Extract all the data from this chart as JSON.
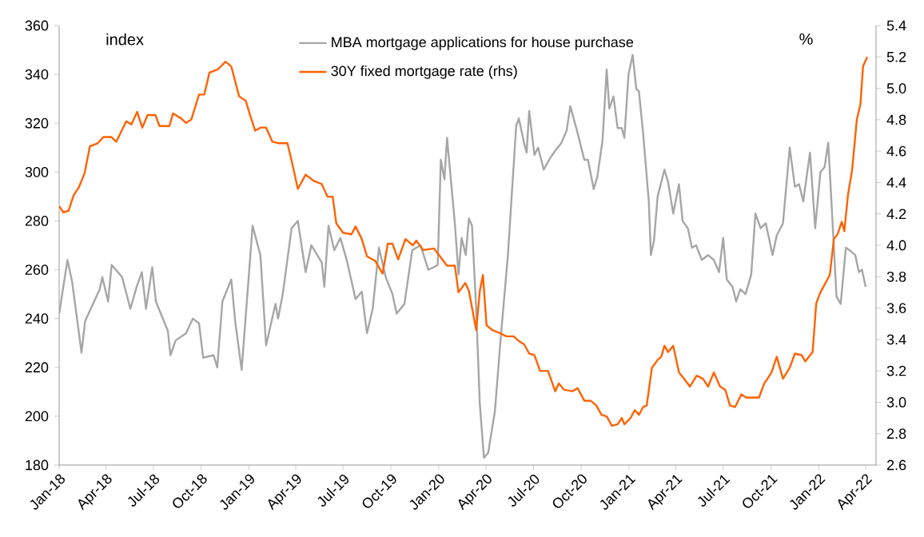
{
  "chart_data": {
    "type": "line",
    "ylabel": "index",
    "y2label": "%",
    "legend": "top",
    "xlim": [
      "2018-01-01",
      "2022-04-21"
    ],
    "xticks": [
      {
        "value": "2018-01-01",
        "label": "Jan-18"
      },
      {
        "value": "2018-04-01",
        "label": "Apr-18"
      },
      {
        "value": "2018-07-01",
        "label": "Jul-18"
      },
      {
        "value": "2018-10-01",
        "label": "Oct-18"
      },
      {
        "value": "2019-01-01",
        "label": "Jan-19"
      },
      {
        "value": "2019-04-01",
        "label": "Apr-19"
      },
      {
        "value": "2019-07-01",
        "label": "Jul-19"
      },
      {
        "value": "2019-10-01",
        "label": "Oct-19"
      },
      {
        "value": "2020-01-01",
        "label": "Jan-20"
      },
      {
        "value": "2020-04-01",
        "label": "Apr-20"
      },
      {
        "value": "2020-07-01",
        "label": "Jul-20"
      },
      {
        "value": "2020-10-01",
        "label": "Oct-20"
      },
      {
        "value": "2021-01-01",
        "label": "Jan-21"
      },
      {
        "value": "2021-04-01",
        "label": "Apr-21"
      },
      {
        "value": "2021-07-01",
        "label": "Jul-21"
      },
      {
        "value": "2021-10-01",
        "label": "Oct-21"
      },
      {
        "value": "2022-01-01",
        "label": "Jan-22"
      },
      {
        "value": "2022-04-01",
        "label": "Apr-22"
      }
    ],
    "ylim": [
      180,
      360
    ],
    "yticks": [
      180,
      200,
      220,
      240,
      260,
      280,
      300,
      320,
      340,
      360
    ],
    "y2lim": [
      2.6,
      5.4
    ],
    "y2ticks": [
      {
        "value": 2.6,
        "label": "2.6"
      },
      {
        "value": 2.8,
        "label": "2.8"
      },
      {
        "value": 3.0,
        "label": "3.0"
      },
      {
        "value": 3.2,
        "label": "3.2"
      },
      {
        "value": 3.4,
        "label": "3.4"
      },
      {
        "value": 3.6,
        "label": "3.6"
      },
      {
        "value": 3.8,
        "label": "3.8"
      },
      {
        "value": 4.0,
        "label": "4.0"
      },
      {
        "value": 4.2,
        "label": "4.2"
      },
      {
        "value": 4.4,
        "label": "4.4"
      },
      {
        "value": 4.6,
        "label": "4.6"
      },
      {
        "value": 4.8,
        "label": "4.8"
      },
      {
        "value": 5.0,
        "label": "5.0"
      },
      {
        "value": 5.2,
        "label": "5.2"
      },
      {
        "value": 5.4,
        "label": "5.4"
      }
    ],
    "series": [
      {
        "name": "MBA mortgage applications for house purchase",
        "color": "#a6a6a6",
        "x": [
          "2018-01-01",
          "2018-01-17",
          "2018-01-26",
          "2018-02-13",
          "2018-02-20",
          "2018-03-05",
          "2018-03-20",
          "2018-03-25",
          "2018-04-05",
          "2018-04-12",
          "2018-05-02",
          "2018-05-18",
          "2018-05-30",
          "2018-06-09",
          "2018-06-17",
          "2018-06-29",
          "2018-07-06",
          "2018-07-29",
          "2018-08-03",
          "2018-08-13",
          "2018-09-02",
          "2018-09-15",
          "2018-09-27",
          "2018-10-05",
          "2018-10-25",
          "2018-11-01",
          "2018-11-11",
          "2018-11-28",
          "2018-12-06",
          "2018-12-18",
          "2019-01-08",
          "2019-01-23",
          "2019-02-03",
          "2019-02-21",
          "2019-02-26",
          "2019-03-07",
          "2019-03-24",
          "2019-04-05",
          "2019-04-20",
          "2019-05-01",
          "2019-05-21",
          "2019-05-26",
          "2019-06-03",
          "2019-06-14",
          "2019-06-26",
          "2019-07-08",
          "2019-07-25",
          "2019-08-06",
          "2019-08-16",
          "2019-08-27",
          "2019-09-08",
          "2019-09-21",
          "2019-10-04",
          "2019-10-12",
          "2019-10-27",
          "2019-11-11",
          "2019-11-27",
          "2019-12-12",
          "2019-12-22",
          "2019-12-30",
          "2020-01-05",
          "2020-01-12",
          "2020-01-17",
          "2020-02-01",
          "2020-02-08",
          "2020-02-14",
          "2020-02-22",
          "2020-02-28",
          "2020-03-05",
          "2020-03-13",
          "2020-03-20",
          "2020-03-28",
          "2020-04-05",
          "2020-04-18",
          "2020-04-28",
          "2020-05-13",
          "2020-05-29",
          "2020-06-03",
          "2020-06-13",
          "2020-06-18",
          "2020-06-23",
          "2020-07-03",
          "2020-07-10",
          "2020-07-21",
          "2020-08-03",
          "2020-08-13",
          "2020-08-24",
          "2020-09-03",
          "2020-09-10",
          "2020-09-24",
          "2020-10-07",
          "2020-10-14",
          "2020-10-25",
          "2020-11-01",
          "2020-11-11",
          "2020-11-19",
          "2020-11-24",
          "2020-12-02",
          "2020-12-10",
          "2020-12-18",
          "2020-12-23",
          "2020-12-31",
          "2021-01-08",
          "2021-01-15",
          "2021-01-20",
          "2021-01-28",
          "2021-02-08",
          "2021-02-12",
          "2021-02-18",
          "2021-02-25",
          "2021-03-10",
          "2021-03-17",
          "2021-03-27",
          "2021-04-07",
          "2021-04-14",
          "2021-04-24",
          "2021-05-02",
          "2021-05-10",
          "2021-05-21",
          "2021-06-02",
          "2021-06-13",
          "2021-06-23",
          "2021-07-01",
          "2021-07-08",
          "2021-07-19",
          "2021-07-26",
          "2021-08-03",
          "2021-08-13",
          "2021-08-24",
          "2021-09-01",
          "2021-09-11",
          "2021-09-21",
          "2021-10-04",
          "2021-10-12",
          "2021-10-24",
          "2021-11-06",
          "2021-11-16",
          "2021-11-24",
          "2021-12-02",
          "2021-12-15",
          "2021-12-25",
          "2022-01-04",
          "2022-01-12",
          "2022-01-19",
          "2022-01-27",
          "2022-02-04",
          "2022-02-12",
          "2022-02-22",
          "2022-03-01",
          "2022-03-12",
          "2022-03-19",
          "2022-03-25",
          "2022-04-01"
        ],
        "values": [
          242,
          264,
          255,
          226,
          239,
          245,
          252,
          257,
          247,
          262,
          257,
          244,
          253,
          259,
          244,
          261,
          247,
          235,
          225,
          231,
          234,
          240,
          238,
          224,
          225,
          220,
          247,
          256,
          238,
          219,
          278,
          266,
          229,
          246,
          240,
          250,
          277,
          280,
          259,
          270,
          263,
          253,
          278,
          268,
          273,
          264,
          248,
          251,
          234,
          244,
          269,
          257,
          250,
          242,
          246,
          268,
          270,
          260,
          261,
          262,
          305,
          297,
          314,
          279,
          258,
          273,
          266,
          281,
          278,
          244,
          205,
          183,
          185,
          202,
          229,
          266,
          319,
          322,
          312,
          308,
          325,
          307,
          310,
          301,
          306,
          309,
          312,
          317,
          327,
          316,
          305,
          305,
          293,
          298,
          313,
          342,
          326,
          331,
          318,
          318,
          314,
          340,
          348,
          334,
          333,
          316,
          288,
          266,
          272,
          290,
          301,
          296,
          283,
          295,
          280,
          277,
          269,
          270,
          264,
          266,
          264,
          259,
          273,
          256,
          253,
          247,
          252,
          250,
          258,
          283,
          277,
          279,
          266,
          274,
          279,
          310,
          294,
          295,
          288,
          308,
          277,
          300,
          302,
          312,
          281,
          249,
          246,
          269,
          268,
          266,
          259,
          260,
          253
        ]
      },
      {
        "name": "30Y fixed mortgage rate (rhs)",
        "color": "#ff6200",
        "axis": "y2",
        "x": [
          "2018-01-01",
          "2018-01-09",
          "2018-01-19",
          "2018-01-29",
          "2018-02-08",
          "2018-02-19",
          "2018-03-01",
          "2018-03-16",
          "2018-03-27",
          "2018-04-11",
          "2018-04-21",
          "2018-05-10",
          "2018-05-20",
          "2018-05-31",
          "2018-06-10",
          "2018-06-20",
          "2018-07-05",
          "2018-07-13",
          "2018-08-01",
          "2018-08-08",
          "2018-08-23",
          "2018-09-02",
          "2018-09-12",
          "2018-09-27",
          "2018-10-07",
          "2018-10-17",
          "2018-11-02",
          "2018-11-17",
          "2018-11-28",
          "2018-12-13",
          "2018-12-26",
          "2019-01-03",
          "2019-01-13",
          "2019-01-23",
          "2019-02-03",
          "2019-02-15",
          "2019-02-28",
          "2019-03-16",
          "2019-03-24",
          "2019-04-05",
          "2019-04-20",
          "2019-05-06",
          "2019-05-21",
          "2019-06-01",
          "2019-06-11",
          "2019-06-18",
          "2019-07-01",
          "2019-07-17",
          "2019-07-25",
          "2019-08-06",
          "2019-08-16",
          "2019-09-01",
          "2019-09-15",
          "2019-09-25",
          "2019-10-04",
          "2019-10-15",
          "2019-10-29",
          "2019-11-12",
          "2019-11-19",
          "2019-12-02",
          "2019-12-23",
          "2020-01-17",
          "2020-02-01",
          "2020-02-08",
          "2020-02-21",
          "2020-02-28",
          "2020-03-13",
          "2020-03-20",
          "2020-03-26",
          "2020-04-02",
          "2020-04-13",
          "2020-04-28",
          "2020-05-10",
          "2020-05-24",
          "2020-06-03",
          "2020-06-13",
          "2020-06-23",
          "2020-07-03",
          "2020-07-14",
          "2020-07-29",
          "2020-08-12",
          "2020-08-19",
          "2020-08-29",
          "2020-09-14",
          "2020-09-24",
          "2020-10-07",
          "2020-10-19",
          "2020-10-30",
          "2020-11-09",
          "2020-11-19",
          "2020-11-29",
          "2020-12-10",
          "2020-12-18",
          "2020-12-23",
          "2021-01-04",
          "2021-01-12",
          "2021-01-20",
          "2021-01-28",
          "2021-02-04",
          "2021-02-14",
          "2021-02-25",
          "2021-03-04",
          "2021-03-10",
          "2021-03-17",
          "2021-03-27",
          "2021-04-07",
          "2021-04-17",
          "2021-04-28",
          "2021-05-11",
          "2021-05-23",
          "2021-06-02",
          "2021-06-13",
          "2021-06-25",
          "2021-07-05",
          "2021-07-14",
          "2021-07-24",
          "2021-08-05",
          "2021-08-14",
          "2021-09-08",
          "2021-09-18",
          "2021-10-02",
          "2021-10-12",
          "2021-10-24",
          "2021-11-06",
          "2021-11-16",
          "2021-11-29",
          "2021-12-06",
          "2021-12-20",
          "2021-12-27",
          "2022-01-04",
          "2022-01-22",
          "2022-01-30",
          "2022-02-06",
          "2022-02-14",
          "2022-02-19",
          "2022-02-26",
          "2022-03-06",
          "2022-03-15",
          "2022-03-22",
          "2022-03-27",
          "2022-04-04"
        ],
        "values": [
          4.25,
          4.21,
          4.22,
          4.32,
          4.37,
          4.46,
          4.63,
          4.65,
          4.69,
          4.69,
          4.66,
          4.79,
          4.77,
          4.85,
          4.75,
          4.83,
          4.83,
          4.76,
          4.76,
          4.84,
          4.81,
          4.78,
          4.8,
          4.96,
          4.96,
          5.1,
          5.12,
          5.17,
          5.14,
          4.95,
          4.92,
          4.83,
          4.73,
          4.75,
          4.75,
          4.66,
          4.65,
          4.65,
          4.54,
          4.36,
          4.45,
          4.41,
          4.39,
          4.31,
          4.31,
          4.14,
          4.08,
          4.07,
          4.12,
          4.04,
          3.93,
          3.9,
          3.82,
          4.01,
          4.01,
          3.91,
          4.04,
          4.0,
          4.03,
          3.97,
          3.98,
          3.87,
          3.87,
          3.7,
          3.76,
          3.71,
          3.46,
          3.71,
          3.81,
          3.49,
          3.46,
          3.44,
          3.42,
          3.42,
          3.39,
          3.37,
          3.31,
          3.3,
          3.2,
          3.2,
          3.07,
          3.12,
          3.08,
          3.07,
          3.09,
          3.01,
          3.01,
          2.98,
          2.92,
          2.91,
          2.85,
          2.86,
          2.9,
          2.86,
          2.9,
          2.95,
          2.92,
          2.97,
          2.98,
          3.22,
          3.27,
          3.29,
          3.36,
          3.32,
          3.36,
          3.19,
          3.15,
          3.1,
          3.17,
          3.15,
          3.1,
          3.19,
          3.1,
          3.08,
          2.98,
          2.97,
          3.05,
          3.03,
          3.03,
          3.12,
          3.19,
          3.29,
          3.15,
          3.22,
          3.31,
          3.3,
          3.26,
          3.32,
          3.63,
          3.7,
          3.81,
          4.04,
          4.07,
          4.15,
          4.09,
          4.32,
          4.48,
          4.8,
          4.9,
          5.14,
          5.2
        ]
      }
    ]
  }
}
